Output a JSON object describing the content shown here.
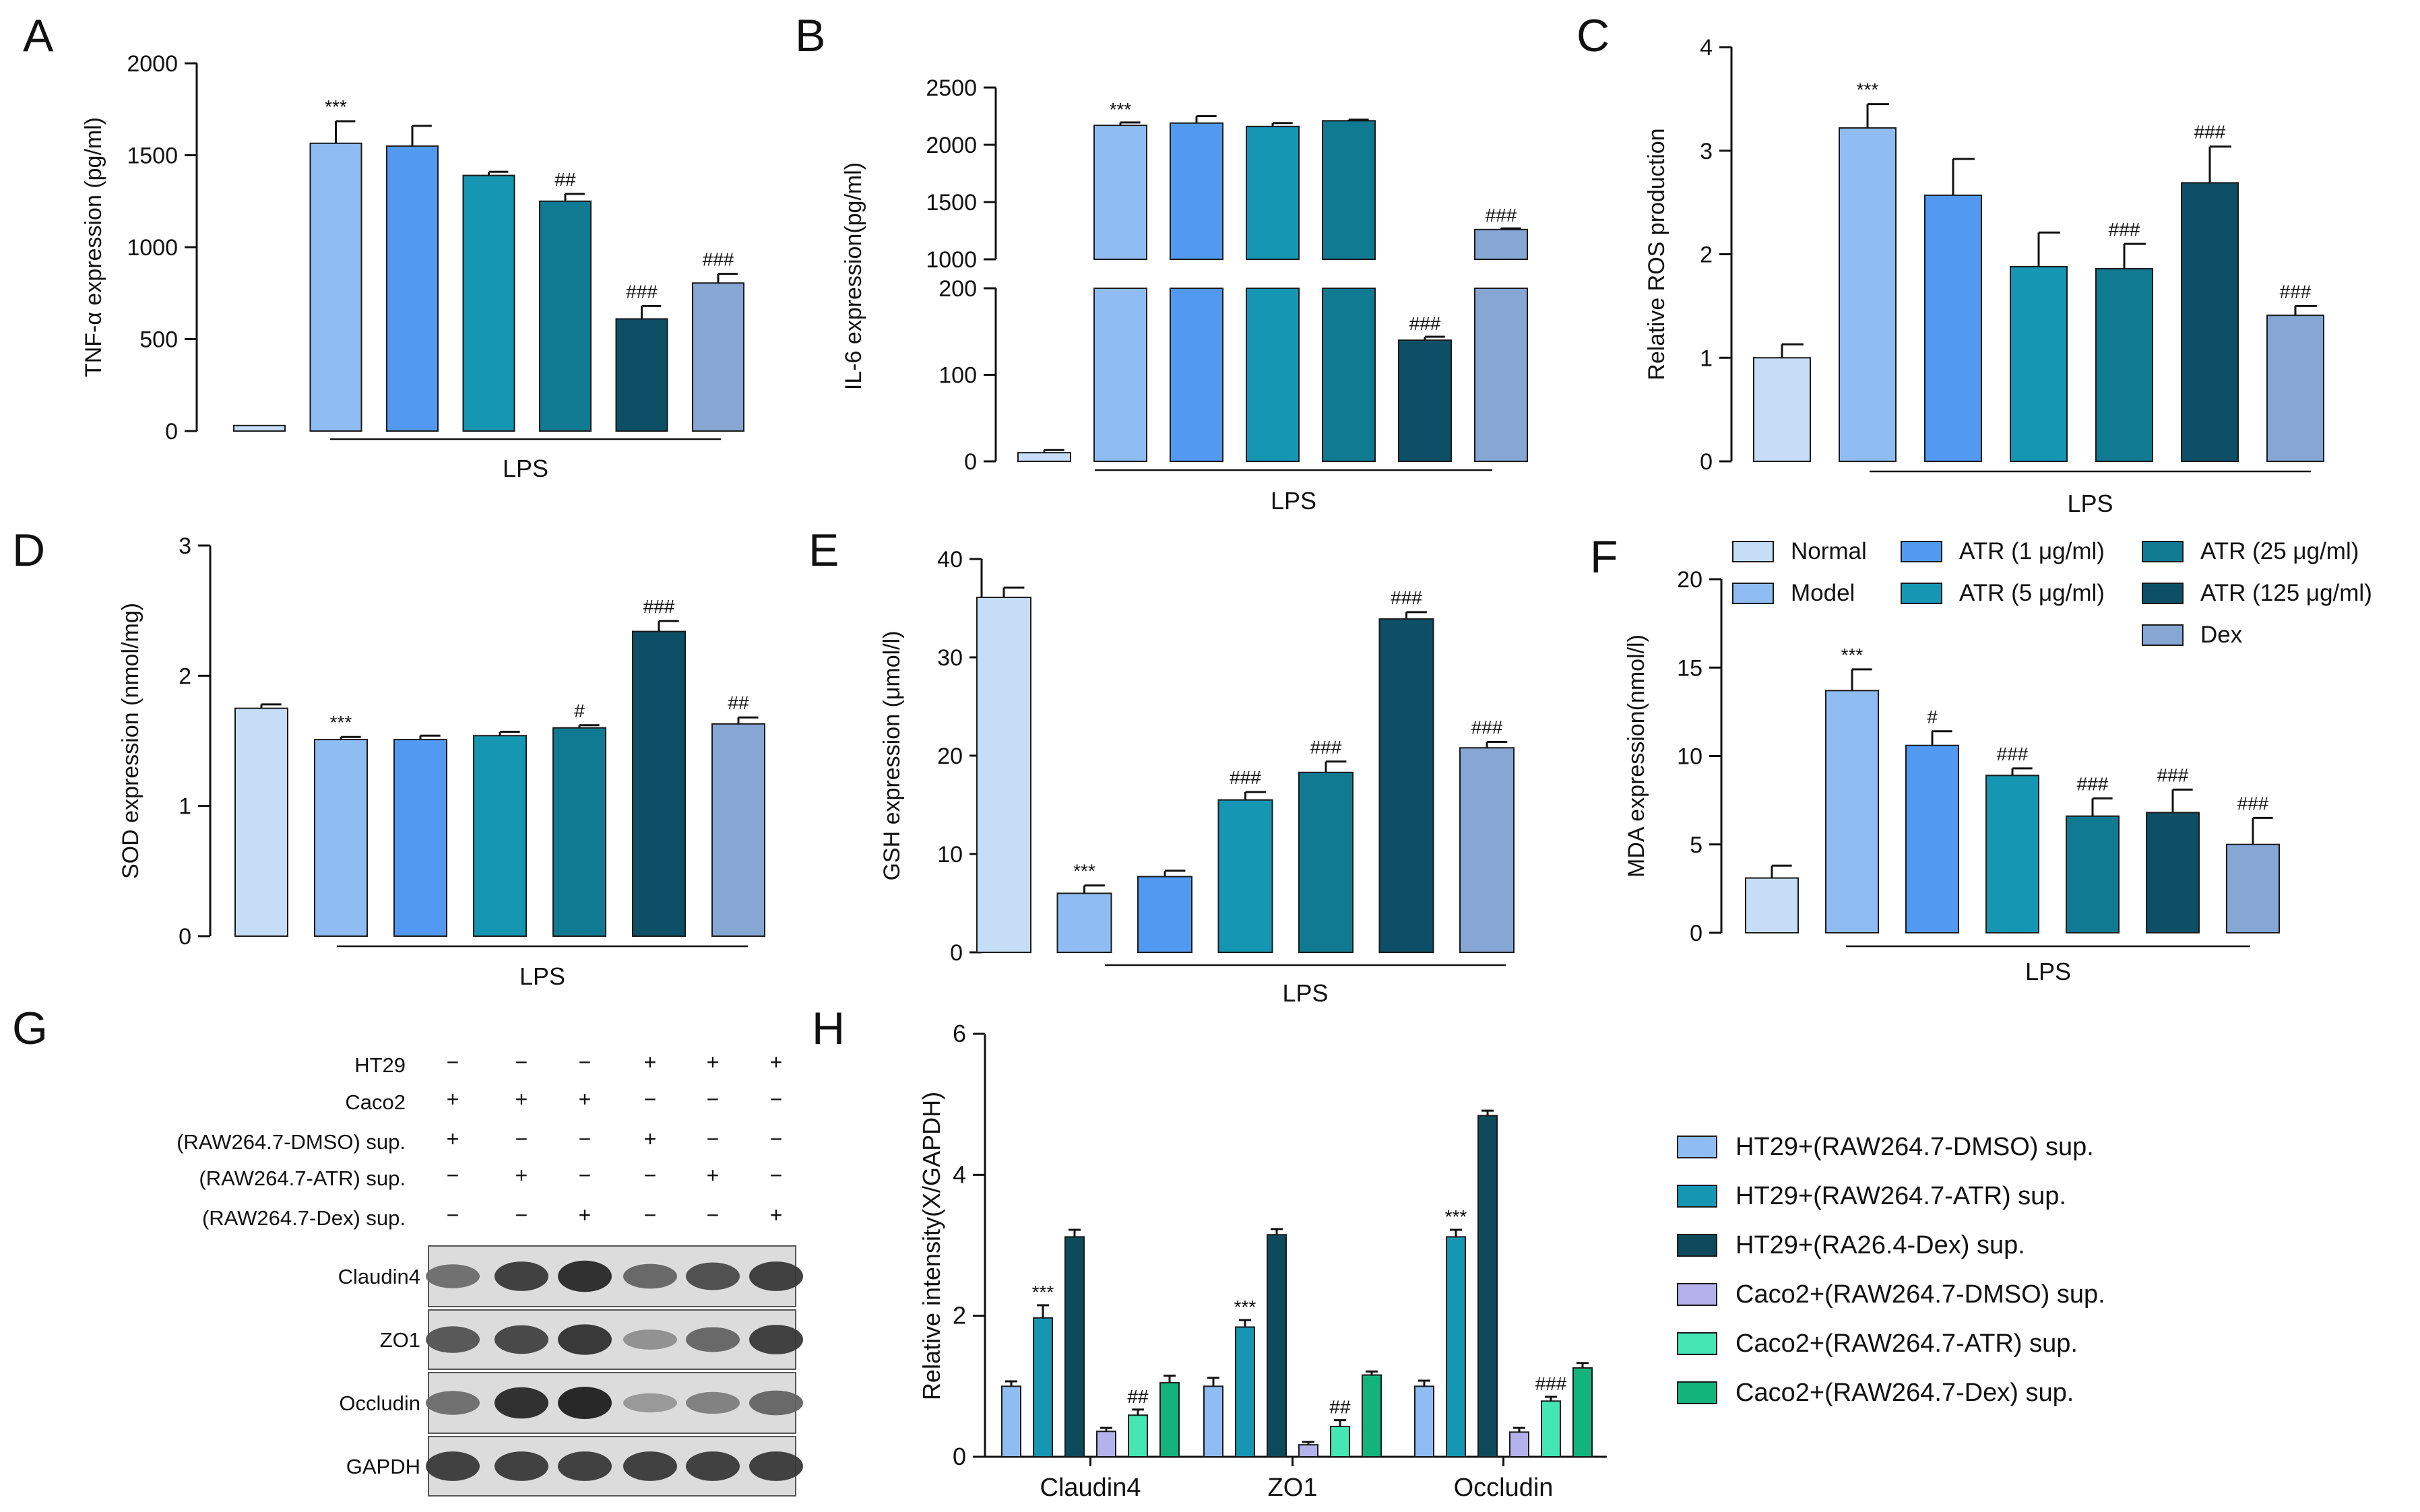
{
  "colors": {
    "normal": "#c6ddf7",
    "model": "#8fbdf3",
    "atr1": "#5299f2",
    "atr5": "#1597b4",
    "atr25": "#0f7a92",
    "atr125": "#0d4f66",
    "dex": "#86a7d4",
    "h_ht29_dmso": "#8fbdf3",
    "h_ht29_atr": "#1597b4",
    "h_ht29_dex": "#0d4a5c",
    "h_caco_dmso": "#b5b1ec",
    "h_caco_atr": "#44e6b3",
    "h_caco_dex": "#12b47c"
  },
  "legend_abcdef": {
    "items": [
      "Normal",
      "Model",
      "ATR (1 μg/ml)",
      "ATR (5 μg/ml)",
      "ATR (25 μg/ml)",
      "ATR (125 μg/ml)",
      "Dex"
    ]
  },
  "chart_data": [
    {
      "panel": "A",
      "type": "bar",
      "ylabel": "TNF-α expression (pg/ml)",
      "xgroup_label": "LPS",
      "ylim": [
        0,
        2000
      ],
      "yticks": [
        "0",
        "500",
        "1000",
        "1500",
        "2000"
      ],
      "categories": [
        "Normal",
        "Model",
        "ATR (1 μg/ml)",
        "ATR (5 μg/ml)",
        "ATR (25 μg/ml)",
        "ATR (125 μg/ml)",
        "Dex"
      ],
      "values": [
        30,
        1565,
        1550,
        1390,
        1250,
        610,
        805
      ],
      "errors": [
        0,
        120,
        110,
        20,
        40,
        70,
        50
      ],
      "annotations": [
        "",
        "***",
        "",
        "",
        "##",
        "###",
        "###"
      ]
    },
    {
      "panel": "B",
      "type": "bar",
      "ylabel": "IL-6 expression(pg/ml)",
      "xgroup_label": "LPS",
      "broken_axis": true,
      "ylim_lower": [
        0,
        200
      ],
      "yticks_lower": [
        "0",
        "100",
        "200"
      ],
      "ylim_upper": [
        1000,
        2500
      ],
      "yticks_upper": [
        "1000",
        "1500",
        "2000",
        "2500"
      ],
      "categories": [
        "Normal",
        "Model",
        "ATR (1 μg/ml)",
        "ATR (5 μg/ml)",
        "ATR (25 μg/ml)",
        "ATR (125 μg/ml)",
        "Dex"
      ],
      "values": [
        10,
        2170,
        2190,
        2160,
        2210,
        140,
        1260
      ],
      "errors": [
        3,
        25,
        60,
        30,
        10,
        4,
        10
      ],
      "annotations": [
        "",
        "***",
        "",
        "",
        "",
        "###",
        "###"
      ]
    },
    {
      "panel": "C",
      "type": "bar",
      "ylabel": "Relative ROS production",
      "xgroup_label": "LPS",
      "ylim": [
        0,
        4
      ],
      "yticks": [
        "0",
        "1",
        "2",
        "3",
        "4"
      ],
      "categories": [
        "Normal",
        "Model",
        "ATR (1 μg/ml)",
        "ATR (5 μg/ml)",
        "ATR (25 μg/ml)",
        "ATR (125 μg/ml)",
        "Dex"
      ],
      "values": [
        1.0,
        3.22,
        2.57,
        1.88,
        1.86,
        2.69,
        1.41
      ],
      "errors": [
        0.13,
        0.23,
        0.35,
        0.33,
        0.24,
        0.35,
        0.09
      ],
      "annotations": [
        "",
        "***",
        "",
        "",
        "###",
        "###",
        "###"
      ]
    },
    {
      "panel": "D",
      "type": "bar",
      "ylabel": "SOD expression (nmol/mg)",
      "xgroup_label": "LPS",
      "ylim": [
        0,
        3
      ],
      "yticks": [
        "0",
        "1",
        "2",
        "3"
      ],
      "categories": [
        "Normal",
        "Model",
        "ATR (1 μg/ml)",
        "ATR (5 μg/ml)",
        "ATR (25 μg/ml)",
        "ATR (125 μg/ml)",
        "Dex"
      ],
      "values": [
        1.75,
        1.51,
        1.51,
        1.54,
        1.6,
        2.34,
        1.63
      ],
      "errors": [
        0.03,
        0.02,
        0.03,
        0.03,
        0.02,
        0.08,
        0.05
      ],
      "annotations": [
        "",
        "***",
        "",
        "",
        "#",
        "###",
        "##"
      ]
    },
    {
      "panel": "E",
      "type": "bar",
      "ylabel": "GSH expression (μmol/l)",
      "xgroup_label": "LPS",
      "ylim": [
        0,
        40
      ],
      "yticks": [
        "0",
        "10",
        "20",
        "30",
        "40"
      ],
      "categories": [
        "Normal",
        "Model",
        "ATR (1 μg/ml)",
        "ATR (5 μg/ml)",
        "ATR (25 μg/ml)",
        "ATR (125 μg/ml)",
        "Dex"
      ],
      "values": [
        36.1,
        6.0,
        7.7,
        15.5,
        18.3,
        33.9,
        20.8
      ],
      "errors": [
        1.0,
        0.8,
        0.6,
        0.8,
        1.1,
        0.7,
        0.6
      ],
      "annotations": [
        "",
        "***",
        "",
        "###",
        "###",
        "###",
        "###"
      ]
    },
    {
      "panel": "F",
      "type": "bar",
      "ylabel": "MDA expression(nmol/l)",
      "xgroup_label": "LPS",
      "ylim": [
        0,
        20
      ],
      "yticks": [
        "0",
        "5",
        "10",
        "15",
        "20"
      ],
      "categories": [
        "Normal",
        "Model",
        "ATR (1 μg/ml)",
        "ATR (5 μg/ml)",
        "ATR (25 μg/ml)",
        "ATR (125 μg/ml)",
        "Dex"
      ],
      "values": [
        3.1,
        13.7,
        10.6,
        8.9,
        6.6,
        6.8,
        5.0
      ],
      "errors": [
        0.7,
        1.2,
        0.8,
        0.4,
        1.0,
        1.3,
        1.5
      ],
      "annotations": [
        "",
        "***",
        "#",
        "###",
        "###",
        "###",
        "###"
      ]
    },
    {
      "panel": "H",
      "type": "bar",
      "ylabel": "Relative intensity(X/GAPDH)",
      "ylim": [
        0,
        6
      ],
      "yticks": [
        "0",
        "2",
        "4",
        "6"
      ],
      "categories": [
        "Claudin4",
        "ZO1",
        "Occludin"
      ],
      "series": [
        {
          "name": "HT29+(RAW264.7-DMSO) sup.",
          "values": [
            1.0,
            1.0,
            1.0
          ],
          "errors": [
            0.07,
            0.12,
            0.08
          ],
          "annotations": [
            "",
            "",
            ""
          ]
        },
        {
          "name": "HT29+(RAW264.7-ATR) sup.",
          "values": [
            1.97,
            1.84,
            3.12
          ],
          "errors": [
            0.18,
            0.1,
            0.1
          ],
          "annotations": [
            "***",
            "***",
            "***"
          ]
        },
        {
          "name": "HT29+(RA26.4-Dex) sup.",
          "values": [
            3.12,
            3.15,
            4.84
          ],
          "errors": [
            0.1,
            0.08,
            0.07
          ],
          "annotations": [
            "",
            "",
            ""
          ]
        },
        {
          "name": "Caco2+(RAW264.7-DMSO) sup.",
          "values": [
            0.36,
            0.17,
            0.35
          ],
          "errors": [
            0.05,
            0.04,
            0.06
          ],
          "annotations": [
            "",
            "",
            ""
          ]
        },
        {
          "name": "Caco2+(RAW264.7-ATR) sup.",
          "values": [
            0.59,
            0.43,
            0.79
          ],
          "errors": [
            0.08,
            0.09,
            0.06
          ],
          "annotations": [
            "##",
            "##",
            "###"
          ]
        },
        {
          "name": "Caco2+(RAW264.7-Dex) sup.",
          "values": [
            1.05,
            1.16,
            1.26
          ],
          "errors": [
            0.1,
            0.05,
            0.07
          ],
          "annotations": [
            "",
            "",
            ""
          ]
        }
      ]
    }
  ],
  "panel_g": {
    "letter": "G",
    "conditions": [
      {
        "label": "HT29",
        "marks": [
          "−",
          "−",
          "−",
          "+",
          "+",
          "+"
        ]
      },
      {
        "label": "Caco2",
        "marks": [
          "+",
          "+",
          "+",
          "−",
          "−",
          "−"
        ]
      },
      {
        "label": "(RAW264.7-DMSO)  sup.",
        "marks": [
          "+",
          "−",
          "−",
          "+",
          "−",
          "−"
        ]
      },
      {
        "label": "(RAW264.7-ATR)  sup.",
        "marks": [
          "−",
          "+",
          "−",
          "−",
          "+",
          "−"
        ]
      },
      {
        "label": "(RAW264.7-Dex)  sup.",
        "marks": [
          "−",
          "−",
          "+",
          "−",
          "−",
          "+"
        ]
      }
    ],
    "blots": [
      {
        "label": "Claudin4",
        "intensity": [
          0.55,
          0.85,
          0.95,
          0.6,
          0.75,
          0.85
        ]
      },
      {
        "label": "ZO1",
        "intensity": [
          0.7,
          0.8,
          0.9,
          0.35,
          0.6,
          0.85
        ]
      },
      {
        "label": "Occludin",
        "intensity": [
          0.55,
          0.95,
          1.0,
          0.3,
          0.45,
          0.6
        ]
      },
      {
        "label": "GAPDH",
        "intensity": [
          0.85,
          0.85,
          0.85,
          0.85,
          0.85,
          0.85
        ]
      }
    ]
  },
  "panel_letters": [
    "A",
    "B",
    "C",
    "D",
    "E",
    "F",
    "G",
    "H"
  ]
}
